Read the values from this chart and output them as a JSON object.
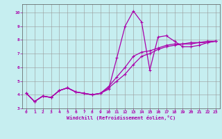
{
  "xlabel": "Windchill (Refroidissement éolien,°C)",
  "background_color": "#c6eef0",
  "line_color": "#aa00aa",
  "grid_color": "#999999",
  "xlim": [
    -0.5,
    23.5
  ],
  "ylim": [
    3.0,
    10.6
  ],
  "xticks": [
    0,
    1,
    2,
    3,
    4,
    5,
    6,
    7,
    8,
    9,
    10,
    11,
    12,
    13,
    14,
    15,
    16,
    17,
    18,
    19,
    20,
    21,
    22,
    23
  ],
  "yticks": [
    3,
    4,
    5,
    6,
    7,
    8,
    9,
    10
  ],
  "line1_x": [
    0,
    1,
    2,
    3,
    4,
    5,
    6,
    7,
    8,
    9,
    10,
    11,
    12,
    13,
    14,
    15,
    16,
    17,
    18,
    19,
    20,
    21,
    22,
    23
  ],
  "line1_y": [
    4.1,
    3.5,
    3.9,
    3.8,
    4.3,
    4.5,
    4.2,
    4.1,
    4.0,
    4.1,
    4.4,
    6.7,
    9.0,
    10.1,
    9.3,
    5.8,
    8.2,
    8.3,
    7.9,
    7.5,
    7.5,
    7.6,
    7.8,
    7.9
  ],
  "line2_x": [
    0,
    1,
    2,
    3,
    4,
    5,
    6,
    7,
    8,
    9,
    10,
    11,
    12,
    13,
    14,
    15,
    16,
    17,
    18,
    19,
    20,
    21,
    22,
    23
  ],
  "line2_y": [
    4.1,
    3.5,
    3.9,
    3.8,
    4.3,
    4.5,
    4.2,
    4.1,
    4.0,
    4.1,
    4.5,
    5.0,
    5.5,
    6.2,
    6.8,
    7.0,
    7.3,
    7.5,
    7.6,
    7.7,
    7.7,
    7.8,
    7.8,
    7.9
  ],
  "line3_x": [
    0,
    1,
    2,
    3,
    4,
    5,
    6,
    7,
    8,
    9,
    10,
    11,
    12,
    13,
    14,
    15,
    16,
    17,
    18,
    19,
    20,
    21,
    22,
    23
  ],
  "line3_y": [
    4.1,
    3.5,
    3.9,
    3.8,
    4.3,
    4.5,
    4.2,
    4.1,
    4.0,
    4.1,
    4.6,
    5.3,
    6.0,
    6.8,
    7.1,
    7.2,
    7.4,
    7.6,
    7.7,
    7.7,
    7.8,
    7.8,
    7.9,
    7.9
  ]
}
